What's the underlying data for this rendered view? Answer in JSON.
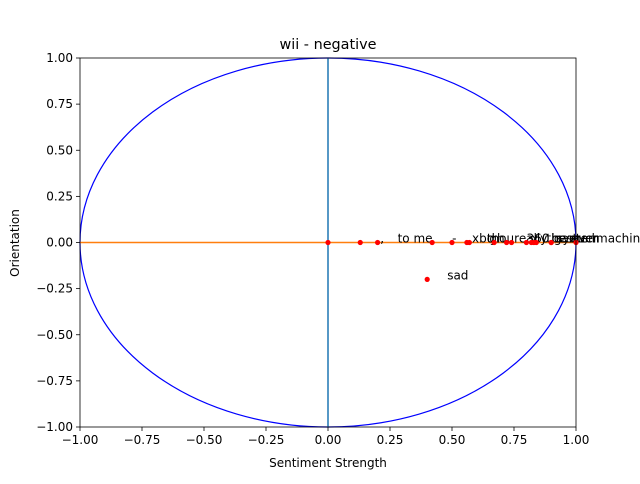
{
  "chart_data": {
    "type": "scatter",
    "title": "wii - negative",
    "xlabel": "Sentiment Strength",
    "ylabel": "Orientation",
    "xlim": [
      -1.0,
      1.0
    ],
    "ylim": [
      -1.0,
      1.0
    ],
    "xticks": [
      "−1.00",
      "−0.75",
      "−0.50",
      "−0.25",
      "0.00",
      "0.25",
      "0.50",
      "0.75",
      "1.00"
    ],
    "yticks": [
      "−1.00",
      "−0.75",
      "−0.50",
      "−0.25",
      "0.00",
      "0.25",
      "0.50",
      "0.75",
      "1.00"
    ],
    "grid": false,
    "unit_circle": true,
    "points": [
      {
        "label": "",
        "x": 0.0,
        "y": 0.0
      },
      {
        "label": ",",
        "x": 0.13,
        "y": 0.0
      },
      {
        "label": "to me",
        "x": 0.2,
        "y": 0.0
      },
      {
        "label": "-",
        "x": 0.42,
        "y": 0.0
      },
      {
        "label": "xbo",
        "x": 0.5,
        "y": 0.0
      },
      {
        "label": "thou",
        "x": 0.56,
        "y": 0.0
      },
      {
        "label": "gh",
        "x": 0.57,
        "y": 0.0
      },
      {
        "label": "really",
        "x": 0.67,
        "y": 0.0
      },
      {
        "label": "360",
        "x": 0.72,
        "y": 0.0
      },
      {
        "label": "x",
        "x": 0.74,
        "y": 0.0
      },
      {
        "label": "the",
        "x": 0.8,
        "y": 0.0
      },
      {
        "label": "best",
        "x": 0.82,
        "y": 0.0
      },
      {
        "label": "game",
        "x": 0.83,
        "y": 0.0
      },
      {
        "label": "system",
        "x": 0.84,
        "y": 0.0
      },
      {
        "label": "ever",
        "x": 0.9,
        "y": 0.0
      },
      {
        "label": "such",
        "x": 0.9,
        "y": 0.0
      },
      {
        "label": "machine",
        "x": 1.0,
        "y": 0.0
      },
      {
        "label": "sad",
        "x": 0.4,
        "y": -0.2
      }
    ],
    "colors": {
      "points": "#ff0000",
      "circle": "#0000ff",
      "vertical_axis_line": "#1f77b4",
      "horizontal_axis_line": "#ff7f0e"
    }
  }
}
